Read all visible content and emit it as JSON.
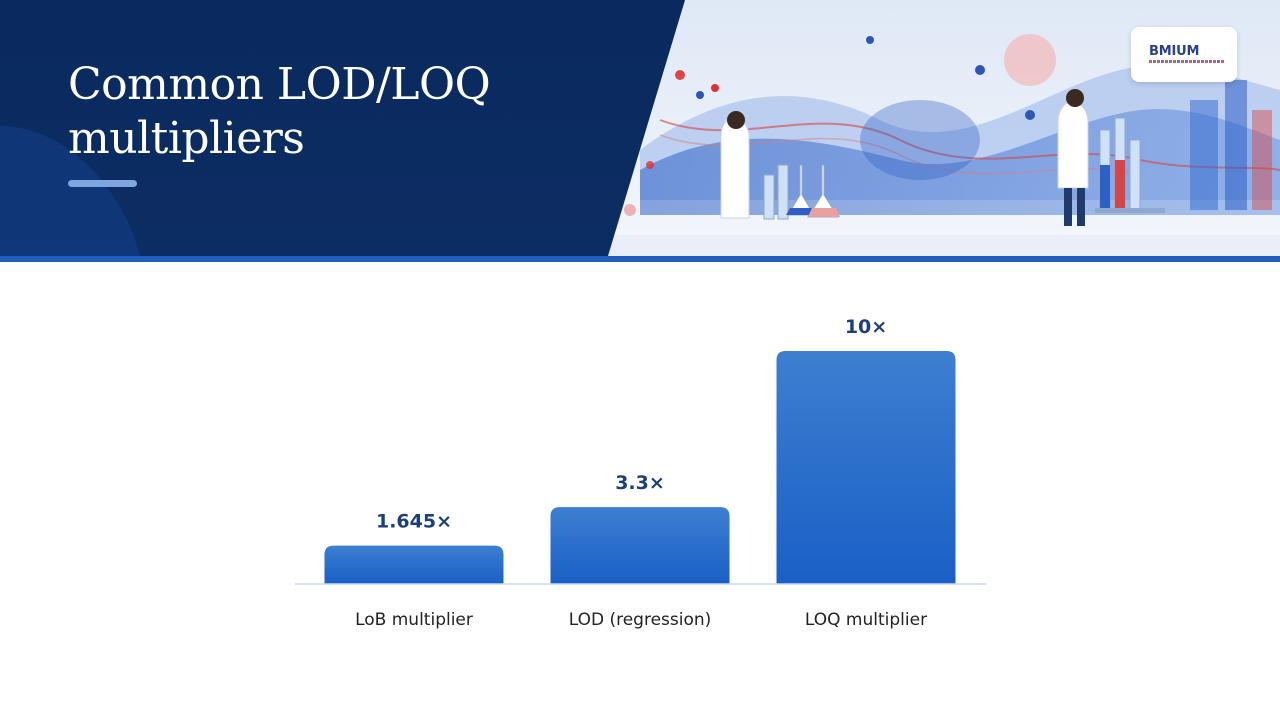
{
  "header": {
    "title": "Common LOD/LOQ multipliers",
    "logo_text": "BMIUM"
  },
  "colors": {
    "header_dark": "#0b2a5c",
    "accent": "#1f5fbf",
    "bar_top": "#3d7fd0",
    "bar_bottom": "#1a5fc6",
    "value_text": "#1b3f7a"
  },
  "chart_data": {
    "type": "bar",
    "title": "",
    "xlabel": "",
    "ylabel": "",
    "categories": [
      "LoB multiplier",
      "LOD (regression)",
      "LOQ multiplier"
    ],
    "values": [
      1.645,
      3.3,
      10
    ],
    "value_labels": [
      "1.645×",
      "3.3×",
      "10×"
    ],
    "ylim": [
      0,
      10
    ],
    "grid": false,
    "legend": "none"
  }
}
